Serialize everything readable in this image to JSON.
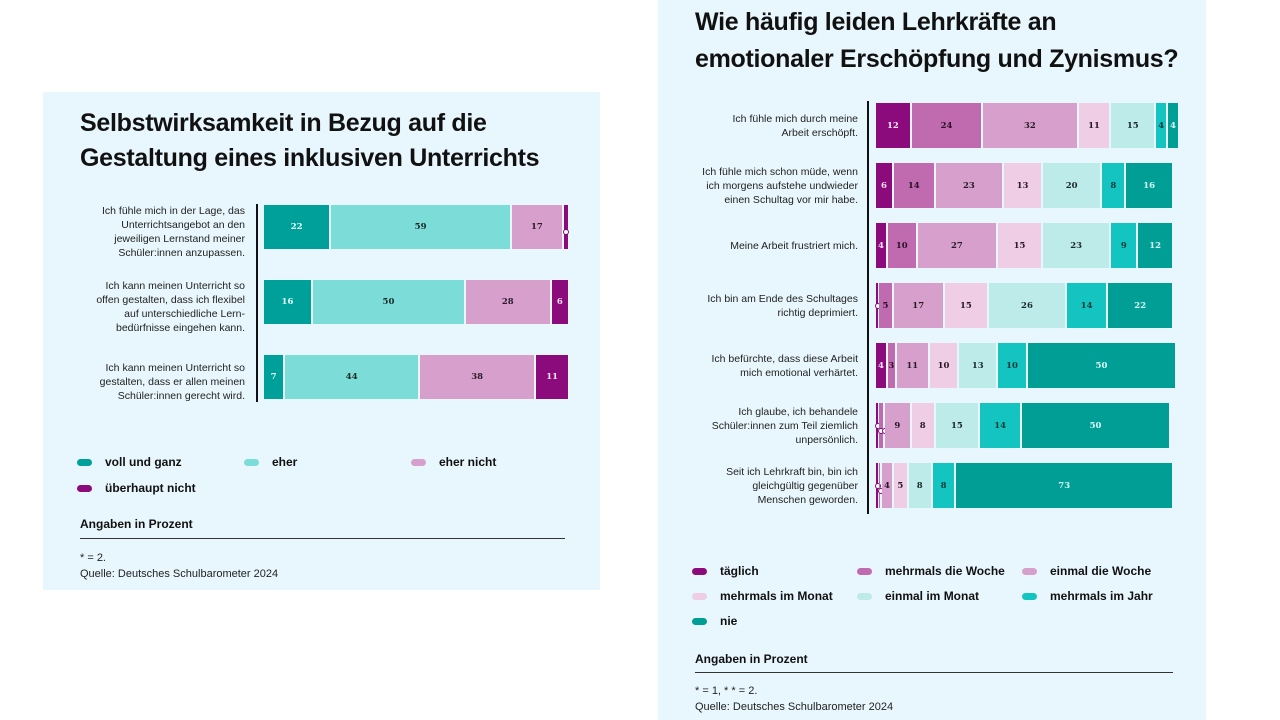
{
  "chart_data": [
    {
      "type": "bar",
      "orientation": "horizontal-stacked",
      "title": "Selbstwirksamkeit in Bezug auf die Gestaltung eines inklusiven Unterrichts",
      "unit_note": "Angaben in Prozent",
      "footnote": "* = 2.",
      "source": "Quelle: Deutsches Schulbarometer 2024",
      "categories": [
        "Ich fühle mich in der Lage, das Unterrichtsangebot an den jeweiligen Lernstand meiner Schüler:innen anzupassen.",
        "Ich kann meinen Unterricht so offen gestalten, dass ich flexibel auf unterschiedliche Lern-bedürfnisse eingehen kann.",
        "Ich kann meinen Unterricht so gestalten, dass er allen meinen Schüler:innen gerecht wird."
      ],
      "category_lines": [
        [
          "Ich fühle mich in der Lage, das",
          "Unterrichtsangebot an den",
          "jeweiligen Lernstand meiner",
          "Schüler:innen anzupassen."
        ],
        [
          "Ich kann meinen Unterricht so",
          "offen gestalten, dass ich flexibel",
          "auf unterschiedliche Lern-",
          "bedürfnisse eingehen kann."
        ],
        [
          "Ich kann meinen Unterricht so",
          "gestalten, dass er allen meinen",
          "Schüler:innen gerecht wird."
        ]
      ],
      "series": [
        {
          "name": "voll und ganz",
          "color": "#00a09a",
          "label_color": "#e6fffd",
          "values": [
            22,
            16,
            7
          ],
          "labels": [
            "22",
            "16",
            "7"
          ]
        },
        {
          "name": "eher",
          "color": "#7cdcd7",
          "label_color": "#1a2a2a",
          "values": [
            59,
            50,
            44
          ],
          "labels": [
            "59",
            "50",
            "44"
          ]
        },
        {
          "name": "eher nicht",
          "color": "#d7a0cc",
          "label_color": "#2a1a28",
          "values": [
            17,
            28,
            38
          ],
          "labels": [
            "17",
            "28",
            "38"
          ]
        },
        {
          "name": "überhaupt nicht",
          "color": "#8b0a7c",
          "label_color": "#ffe6fb",
          "values": [
            2,
            6,
            11
          ],
          "labels": [
            "*",
            "6",
            "11"
          ]
        }
      ],
      "xlim": [
        0,
        100
      ],
      "legend_position": "bottom"
    },
    {
      "type": "bar",
      "orientation": "horizontal-stacked",
      "title": "Wie häufig leiden Lehrkräfte an emotionaler Erschöpfung und Zynismus?",
      "unit_note": "Angaben in Prozent",
      "footnote": "* = 1, * * = 2.",
      "source": "Quelle: Deutsches Schulbarometer 2024",
      "categories": [
        "Ich fühle mich durch meine Arbeit erschöpft.",
        "Ich fühle mich schon müde, wenn ich morgens aufstehe undwieder einen Schultag vor mir habe.",
        "Meine Arbeit frustriert mich.",
        "Ich bin am Ende des Schultages richtig deprimiert.",
        "Ich befürchte, dass diese Arbeit mich emotional verhärtet.",
        "Ich glaube, ich behandele Schüler:innen zum Teil ziemlich unpersönlich.",
        "Seit ich Lehrkraft bin, bin ich gleichgültig gegenüber Menschen geworden."
      ],
      "category_lines": [
        [
          "Ich fühle mich durch meine",
          "Arbeit erschöpft."
        ],
        [
          "Ich fühle mich schon müde, wenn",
          "ich morgens aufstehe undwieder",
          "einen Schultag vor mir habe."
        ],
        [
          "Meine Arbeit frustriert mich."
        ],
        [
          "Ich bin am Ende des Schultages",
          "richtig deprimiert."
        ],
        [
          "Ich befürchte, dass diese Arbeit",
          "mich emotional verhärtet."
        ],
        [
          "Ich glaube, ich behandele",
          "Schüler:innen zum Teil ziemlich",
          "unpersönlich."
        ],
        [
          "Seit ich Lehrkraft bin, bin ich",
          "gleichgültig gegenüber",
          "Menschen geworden."
        ]
      ],
      "series": [
        {
          "name": "täglich",
          "color": "#8b0a7c",
          "label_color": "#ffe6fb",
          "values": [
            12,
            6,
            4,
            1,
            4,
            1,
            1
          ],
          "labels": [
            "12",
            "6",
            "4",
            "*",
            "4",
            "*",
            "*"
          ]
        },
        {
          "name": "mehrmals die Woche",
          "color": "#c06bb0",
          "label_color": "#2a1028",
          "values": [
            24,
            14,
            10,
            5,
            3,
            2,
            1
          ],
          "labels": [
            "24",
            "14",
            "10",
            "5",
            "3",
            "**",
            "*"
          ]
        },
        {
          "name": "einmal die Woche",
          "color": "#d79fcc",
          "label_color": "#2a1a28",
          "values": [
            32,
            23,
            27,
            17,
            11,
            9,
            4
          ],
          "labels": [
            "32",
            "23",
            "27",
            "17",
            "11",
            "9",
            "4"
          ]
        },
        {
          "name": "mehrmals im Monat",
          "color": "#efcde4",
          "label_color": "#2a1a28",
          "values": [
            11,
            13,
            15,
            15,
            10,
            8,
            5
          ],
          "labels": [
            "11",
            "13",
            "15",
            "15",
            "10",
            "8",
            "5"
          ]
        },
        {
          "name": "einmal im Monat",
          "color": "#bdebea",
          "label_color": "#1a2a2a",
          "values": [
            15,
            20,
            23,
            26,
            13,
            15,
            8
          ],
          "labels": [
            "15",
            "20",
            "23",
            "26",
            "13",
            "15",
            "8"
          ]
        },
        {
          "name": "mehrmals im Jahr",
          "color": "#14c4c0",
          "label_color": "#0e3a38",
          "values": [
            4,
            8,
            9,
            14,
            10,
            14,
            8
          ],
          "labels": [
            "4",
            "8",
            "9",
            "14",
            "10",
            "14",
            "8"
          ]
        },
        {
          "name": "nie",
          "color": "#009e95",
          "label_color": "#d8fffc",
          "values": [
            4,
            16,
            12,
            22,
            50,
            50,
            73
          ],
          "labels": [
            "4",
            "16",
            "12",
            "22",
            "50",
            "50",
            "73"
          ]
        }
      ],
      "xlim": [
        0,
        100
      ],
      "legend_position": "bottom"
    }
  ]
}
